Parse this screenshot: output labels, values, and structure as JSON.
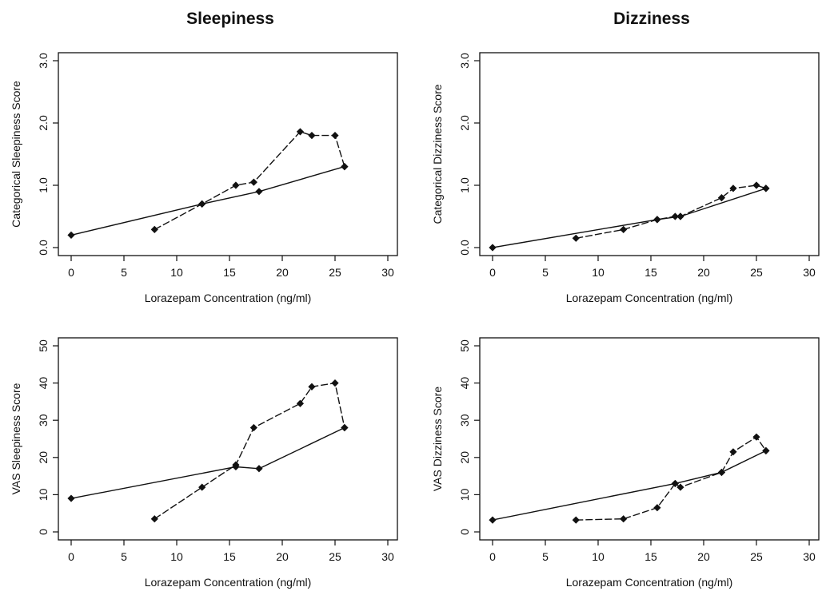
{
  "column_titles": [
    "Sleepiness",
    "Dizziness"
  ],
  "chart_data": [
    {
      "type": "line",
      "panel": "top-left",
      "title": "",
      "xlabel": "Lorazepam Concentration (ng/ml)",
      "ylabel": "Categorical Sleepiness Score",
      "xlim": [
        0,
        30
      ],
      "ylim": [
        0,
        3
      ],
      "xticks": [
        0,
        5,
        10,
        15,
        20,
        25,
        30
      ],
      "yticks": [
        0,
        1,
        2,
        3
      ],
      "ytick_labels": [
        "0.0",
        "1.0",
        "2.0",
        "3.0"
      ],
      "grid": false,
      "series": [
        {
          "style": "solid",
          "points": [
            [
              0,
              0.2
            ],
            [
              12.4,
              0.7
            ],
            [
              17.8,
              0.9
            ],
            [
              25.9,
              1.3
            ]
          ]
        },
        {
          "style": "dashed",
          "points": [
            [
              7.9,
              0.29
            ],
            [
              12.4,
              0.7
            ],
            [
              15.6,
              1.0
            ],
            [
              17.3,
              1.05
            ],
            [
              21.7,
              1.86
            ],
            [
              22.8,
              1.8
            ],
            [
              25.0,
              1.8
            ],
            [
              25.9,
              1.3
            ]
          ]
        }
      ]
    },
    {
      "type": "line",
      "panel": "top-right",
      "title": "",
      "xlabel": "Lorazepam Concentration (ng/ml)",
      "ylabel": "Categorical Dizziness Score",
      "xlim": [
        0,
        30
      ],
      "ylim": [
        0,
        3
      ],
      "xticks": [
        0,
        5,
        10,
        15,
        20,
        25,
        30
      ],
      "yticks": [
        0,
        1,
        2,
        3
      ],
      "ytick_labels": [
        "0.0",
        "1.0",
        "2.0",
        "3.0"
      ],
      "grid": false,
      "series": [
        {
          "style": "solid",
          "points": [
            [
              0,
              0.0
            ],
            [
              15.6,
              0.45
            ],
            [
              17.8,
              0.5
            ],
            [
              25.9,
              0.95
            ]
          ]
        },
        {
          "style": "dashed",
          "points": [
            [
              7.9,
              0.15
            ],
            [
              12.4,
              0.29
            ],
            [
              15.6,
              0.45
            ],
            [
              17.3,
              0.5
            ],
            [
              17.8,
              0.5
            ],
            [
              21.7,
              0.8
            ],
            [
              22.8,
              0.95
            ],
            [
              25.0,
              1.0
            ],
            [
              25.9,
              0.95
            ]
          ]
        }
      ]
    },
    {
      "type": "line",
      "panel": "bottom-left",
      "title": "",
      "xlabel": "Lorazepam Concentration (ng/ml)",
      "ylabel": "VAS Sleepiness Score",
      "xlim": [
        0,
        30
      ],
      "ylim": [
        0,
        50
      ],
      "xticks": [
        0,
        5,
        10,
        15,
        20,
        25,
        30
      ],
      "yticks": [
        0,
        10,
        20,
        30,
        40,
        50
      ],
      "ytick_labels": [
        "0",
        "10",
        "20",
        "30",
        "40",
        "50"
      ],
      "grid": false,
      "series": [
        {
          "style": "solid",
          "points": [
            [
              0,
              9
            ],
            [
              15.6,
              17.5
            ],
            [
              17.8,
              17
            ],
            [
              25.9,
              28
            ]
          ]
        },
        {
          "style": "dashed",
          "points": [
            [
              7.9,
              3.5
            ],
            [
              12.4,
              12
            ],
            [
              15.6,
              18
            ],
            [
              17.3,
              28
            ],
            [
              21.7,
              34.5
            ],
            [
              22.8,
              39
            ],
            [
              25.0,
              40
            ],
            [
              25.9,
              28
            ]
          ]
        }
      ]
    },
    {
      "type": "line",
      "panel": "bottom-right",
      "title": "",
      "xlabel": "Lorazepam Concentration (ng/ml)",
      "ylabel": "VAS Dizziness Score",
      "xlim": [
        0,
        30
      ],
      "ylim": [
        0,
        50
      ],
      "xticks": [
        0,
        5,
        10,
        15,
        20,
        25,
        30
      ],
      "yticks": [
        0,
        10,
        20,
        30,
        40,
        50
      ],
      "ytick_labels": [
        "0",
        "10",
        "20",
        "30",
        "40",
        "50"
      ],
      "grid": false,
      "series": [
        {
          "style": "solid",
          "points": [
            [
              0,
              3.2
            ],
            [
              17.3,
              13
            ],
            [
              21.7,
              16
            ],
            [
              25.9,
              21.8
            ]
          ]
        },
        {
          "style": "dashed",
          "points": [
            [
              7.9,
              3.2
            ],
            [
              12.4,
              3.5
            ],
            [
              15.6,
              6.5
            ],
            [
              17.3,
              13
            ],
            [
              17.8,
              12
            ],
            [
              21.7,
              16
            ],
            [
              22.8,
              21.5
            ],
            [
              25.0,
              25.5
            ],
            [
              25.9,
              21.8
            ]
          ]
        }
      ]
    }
  ]
}
